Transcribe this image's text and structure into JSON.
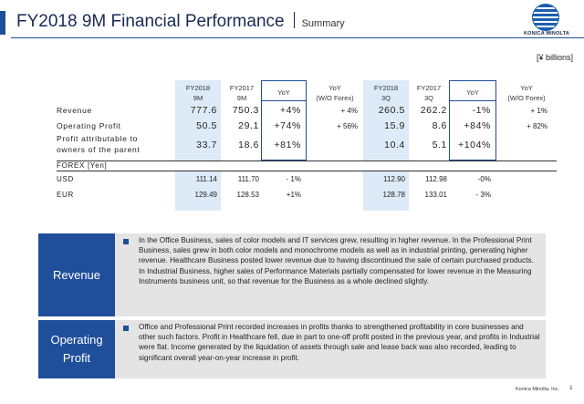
{
  "header": {
    "title": "FY2018 9M Financial Performance",
    "subtitle": "Summary",
    "logo_text": "KONICA MINOLTA"
  },
  "units": "[¥ billions]",
  "columns": [
    {
      "line1": "FY2018",
      "line2": "9M"
    },
    {
      "line1": "FY2017",
      "line2": "9M"
    },
    {
      "line1": "YoY",
      "line2": ""
    },
    {
      "line1": "YoY",
      "line2": "(W/O Forex)"
    },
    {
      "line1": "FY2018",
      "line2": "3Q"
    },
    {
      "line1": "FY2017",
      "line2": "3Q"
    },
    {
      "line1": "YoY",
      "line2": ""
    },
    {
      "line1": "YoY",
      "line2": "(W/O Forex)"
    }
  ],
  "financials": [
    {
      "label": "Revenue",
      "values": [
        "777.6",
        "750.3",
        "+4%",
        "+ 4%",
        "260.5",
        "262.2",
        "-1%",
        "+ 1%"
      ]
    },
    {
      "label": "Operating Profit",
      "values": [
        "50.5",
        "29.1",
        "+74%",
        "+ 56%",
        "15.9",
        "8.6",
        "+84%",
        "+ 82%"
      ]
    },
    {
      "label": "Profit attributable to owners of the parent",
      "label_line1": "Profit attributable to",
      "label_line2": "owners of the parent",
      "values": [
        "33.7",
        "18.6",
        "+81%",
        "",
        "10.4",
        "5.1",
        "+104%",
        ""
      ]
    }
  ],
  "forex": {
    "title": "FOREX [Yen]",
    "rows": [
      {
        "label": "USD",
        "values": [
          "111.14",
          "111.70",
          "- 1%",
          "",
          "112.90",
          "112.98",
          "-0%",
          ""
        ]
      },
      {
        "label": "EUR",
        "values": [
          "129.49",
          "128.53",
          "+1%",
          "",
          "128.78",
          "133.01",
          "- 3%",
          ""
        ]
      }
    ]
  },
  "panels": [
    {
      "title": "Revenue",
      "text": "In the Office Business, sales of color models and IT services grew, resulting in higher revenue. In the Professional Print Business, sales grew in both color models and monochrome models as well as in industrial printing, generating higher revenue. Healthcare Business posted lower revenue due to having discontinued the sale of certain purchased products. In Industrial Business, higher sales of Performance Materials partially compensated for lower revenue in the Measuring Instruments business unit, so that revenue for the Business as a whole declined slightly."
    },
    {
      "title_line1": "Operating",
      "title_line2": "Profit",
      "text": "Office and Professional Print recorded increases in profits thanks to strengthened profitability in core businesses and other such factors. Profit in Healthcare fell, due in part to one-off profit posted in the previous year, and profits in Industrial were flat. Income generated by the liquidation of assets through sale and lease back was also recorded, leading to significant overall year-on-year increase in profit."
    }
  ],
  "footer": {
    "company": "Konica Minolta, Inc.",
    "page": "1"
  },
  "colors": {
    "accent": "#1f4e9a",
    "shade": "#dcebf7",
    "panel_bg": "#e4e4e4"
  }
}
